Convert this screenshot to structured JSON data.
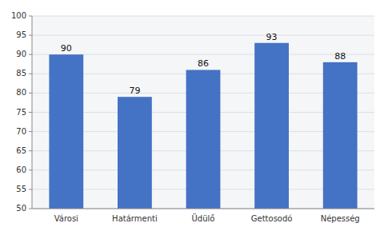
{
  "chart_data": {
    "type": "bar",
    "categories": [
      "Városi",
      "Határmenti",
      "Üdülő",
      "Gettosodó",
      "Népesség"
    ],
    "values": [
      90,
      79,
      86,
      93,
      88
    ],
    "color": "#4472C4",
    "ylim": [
      50,
      100
    ],
    "yticks": [
      50,
      55,
      60,
      65,
      70,
      75,
      80,
      85,
      90,
      95,
      100
    ],
    "grid": true,
    "data_labels": true
  }
}
